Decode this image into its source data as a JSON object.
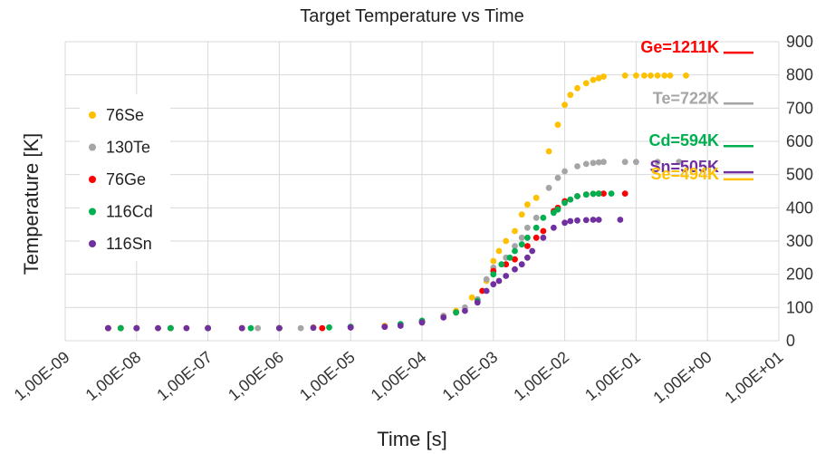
{
  "chart_data": {
    "type": "scatter",
    "title": "Target Temperature vs Time",
    "xlabel": "Time [s]",
    "ylabel": "Temperature [K]",
    "xscale": "log",
    "xlim": [
      1e-09,
      10
    ],
    "ylim": [
      0,
      900
    ],
    "x_tick_labels": [
      "1,00E-09",
      "1,00E-08",
      "1,00E-07",
      "1,00E-06",
      "1,00E-05",
      "1,00E-04",
      "1,00E-03",
      "1,00E-02",
      "1,00E-01",
      "1,00E+00",
      "1,00E+01"
    ],
    "y_tick_labels": [
      "0",
      "100",
      "200",
      "300",
      "400",
      "500",
      "600",
      "700",
      "800",
      "900"
    ],
    "y_axis_side": "right",
    "grid": true,
    "legend": "left",
    "series": [
      {
        "name": "76Se",
        "color": "#ffc000",
        "x": [
          4e-09,
          6e-09,
          1e-08,
          2e-08,
          5e-08,
          1e-07,
          3e-07,
          1e-06,
          3e-06,
          1e-05,
          3e-05,
          0.0001,
          0.0002,
          0.0003,
          0.0005,
          0.0008,
          0.001,
          0.0012,
          0.0015,
          0.002,
          0.0025,
          0.003,
          0.004,
          0.006,
          0.008,
          0.01,
          0.012,
          0.015,
          0.02,
          0.025,
          0.03,
          0.035,
          0.07,
          0.1,
          0.13,
          0.16,
          0.2,
          0.25,
          0.3,
          0.5
        ],
        "y": [
          38,
          38,
          38,
          38,
          38,
          38,
          38,
          38,
          40,
          42,
          45,
          60,
          75,
          90,
          130,
          180,
          240,
          270,
          300,
          330,
          380,
          410,
          430,
          570,
          650,
          710,
          740,
          760,
          775,
          785,
          790,
          795,
          798,
          798,
          798,
          798,
          798,
          798,
          798,
          798
        ]
      },
      {
        "name": "130Te",
        "color": "#a5a5a5",
        "x": [
          4e-09,
          1e-08,
          3e-08,
          1e-07,
          5e-07,
          2e-06,
          1e-05,
          5e-05,
          0.0001,
          0.0002,
          0.0004,
          0.0006,
          0.0008,
          0.001,
          0.0015,
          0.002,
          0.0025,
          0.003,
          0.004,
          0.006,
          0.008,
          0.01,
          0.015,
          0.02,
          0.025,
          0.03,
          0.035,
          0.07,
          0.1,
          0.2,
          0.4
        ],
        "y": [
          38,
          38,
          38,
          38,
          38,
          38,
          42,
          50,
          60,
          75,
          100,
          125,
          185,
          220,
          250,
          285,
          310,
          340,
          370,
          460,
          490,
          510,
          525,
          532,
          535,
          537,
          538,
          538,
          538,
          538,
          538
        ]
      },
      {
        "name": "76Ge",
        "color": "#ff0000",
        "x": [
          4e-09,
          6e-09,
          1e-08,
          3e-08,
          1e-07,
          3e-07,
          1e-06,
          4e-06,
          1e-05,
          3e-05,
          0.0001,
          0.0003,
          0.0007,
          0.001,
          0.0015,
          0.002,
          0.003,
          0.004,
          0.005,
          0.007,
          0.008,
          0.01,
          0.015,
          0.02,
          0.025,
          0.03,
          0.035,
          0.07
        ],
        "y": [
          38,
          38,
          38,
          38,
          38,
          38,
          38,
          38,
          40,
          42,
          55,
          85,
          150,
          210,
          230,
          245,
          285,
          310,
          330,
          390,
          400,
          420,
          435,
          440,
          442,
          443,
          443,
          443
        ]
      },
      {
        "name": "116Cd",
        "color": "#00b050",
        "x": [
          6e-09,
          1e-08,
          3e-08,
          1e-07,
          4e-07,
          1e-06,
          5e-06,
          1e-05,
          5e-05,
          0.0001,
          0.0003,
          0.0006,
          0.001,
          0.0013,
          0.0017,
          0.002,
          0.0025,
          0.003,
          0.004,
          0.005,
          0.007,
          0.008,
          0.01,
          0.012,
          0.015,
          0.02,
          0.025,
          0.03,
          0.045
        ],
        "y": [
          38,
          38,
          38,
          38,
          38,
          38,
          40,
          42,
          50,
          60,
          85,
          120,
          200,
          230,
          250,
          270,
          290,
          310,
          340,
          370,
          385,
          395,
          415,
          425,
          435,
          440,
          442,
          443,
          443
        ]
      },
      {
        "name": "116Sn",
        "color": "#7030a0",
        "x": [
          4e-09,
          1e-08,
          2e-08,
          5e-08,
          1e-07,
          3e-07,
          1e-06,
          3e-06,
          1e-05,
          3e-05,
          5e-05,
          0.0001,
          0.0002,
          0.0004,
          0.0006,
          0.0008,
          0.001,
          0.0012,
          0.0015,
          0.002,
          0.0025,
          0.003,
          0.0035,
          0.005,
          0.007,
          0.01,
          0.012,
          0.015,
          0.02,
          0.025,
          0.03,
          0.06
        ],
        "y": [
          38,
          38,
          38,
          38,
          38,
          38,
          38,
          39,
          40,
          42,
          45,
          55,
          70,
          90,
          115,
          150,
          170,
          180,
          195,
          215,
          230,
          250,
          270,
          310,
          340,
          355,
          360,
          362,
          363,
          364,
          364,
          364
        ]
      }
    ],
    "annotations": [
      {
        "label": "Ge=1211K",
        "color": "#ff0000",
        "y": 875
      },
      {
        "label": "Te=722K",
        "color": "#a5a5a5",
        "y": 722
      },
      {
        "label": "Cd=594K",
        "color": "#00b050",
        "y": 594
      },
      {
        "label": "Sn=505K",
        "color": "#7030a0",
        "y": 515
      },
      {
        "label": "Se=494K",
        "color": "#ffc000",
        "y": 494
      }
    ]
  }
}
